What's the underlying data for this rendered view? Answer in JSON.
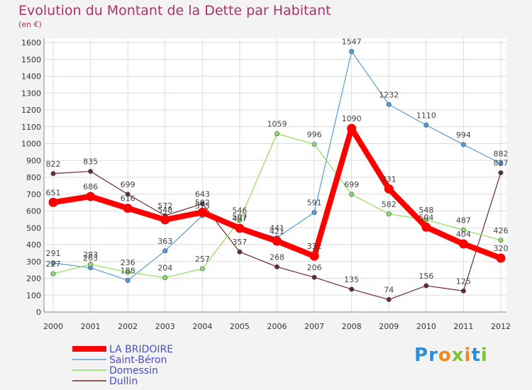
{
  "chart_data": {
    "type": "line",
    "title": "Evolution du Montant de la Dette par Habitant",
    "subtitle": "(en €)",
    "x": [
      "2000",
      "2001",
      "2002",
      "2003",
      "2004",
      "2005",
      "2006",
      "2007",
      "2008",
      "2009",
      "2010",
      "2011",
      "2012"
    ],
    "ylim": [
      0,
      1600
    ],
    "yticks": [
      "0",
      "100",
      "200",
      "300",
      "400",
      "500",
      "600",
      "700",
      "800",
      "900",
      "1000",
      "1100",
      "1200",
      "1300",
      "1400",
      "1500",
      "1600"
    ],
    "grid": true,
    "legend_position": "bottom-left",
    "series": [
      {
        "name": "Dullin",
        "color": "#6e2a2a",
        "values": [
          822,
          835,
          699,
          572,
          643,
          357,
          268,
          206,
          135,
          74,
          156,
          125,
          827
        ],
        "labels": [
          "822",
          "835",
          "699",
          "572",
          "643",
          "357",
          "268",
          "206",
          "135",
          "74",
          "156",
          "125",
          "827"
        ]
      },
      {
        "name": "Saint-Béron",
        "color": "#5a9bd0",
        "values": [
          291,
          263,
          188,
          363,
          573,
          507,
          441,
          591,
          1547,
          1232,
          1110,
          994,
          882
        ],
        "labels": [
          "291",
          "263",
          "188",
          "363",
          "573",
          "507",
          "441",
          "591",
          "1547",
          "1232",
          "1110",
          "994",
          "882"
        ]
      },
      {
        "name": "Domessin",
        "color": "#90dd5a",
        "values": [
          227,
          283,
          236,
          204,
          257,
          546,
          1059,
          996,
          699,
          582,
          548,
          487,
          426
        ],
        "labels": [
          "227",
          "283",
          "236",
          "204",
          "257",
          "546",
          "1059",
          "996",
          "699",
          "582",
          "548",
          "487",
          "426"
        ]
      },
      {
        "name": "LA BRIDOIRE",
        "color": "#ff0000",
        "values": [
          651,
          686,
          616,
          548,
          592,
          497,
          421,
          332,
          1090,
          731,
          504,
          404,
          320
        ],
        "labels": [
          "651",
          "686",
          "616",
          "548",
          "592",
          "497",
          "421",
          "332",
          "1090",
          "731",
          "504",
          "404",
          "320"
        ]
      }
    ],
    "legend_order": [
      "LA BRIDOIRE",
      "Saint-Béron",
      "Domessin",
      "Dullin"
    ],
    "legend_text_color": "#4a4ad0"
  },
  "logo": {
    "letters": [
      "P",
      "r",
      "o",
      "x",
      "i",
      "t",
      "i"
    ],
    "colors": [
      "#2a8fd8",
      "#2a8fd8",
      "#f08a1c",
      "#7cc23a",
      "#f08a1c",
      "#2a8fd8",
      "#7cc23a"
    ]
  }
}
